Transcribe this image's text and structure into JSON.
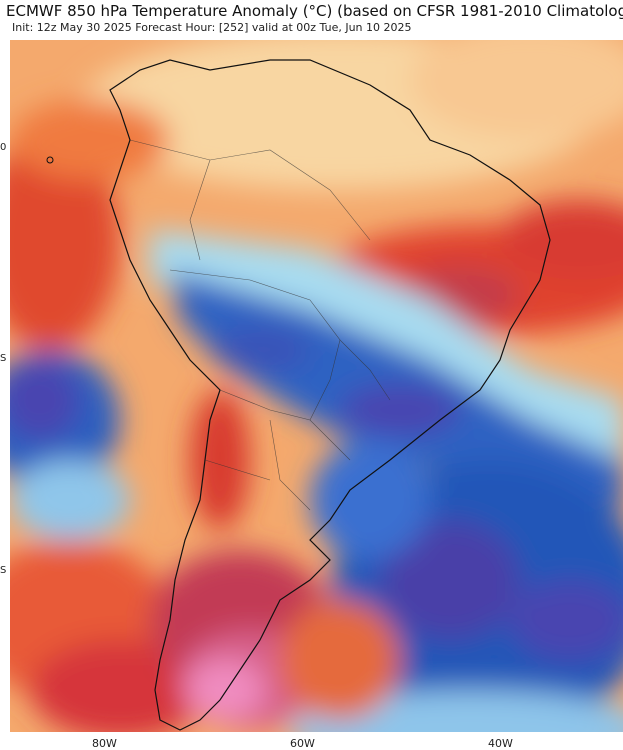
{
  "title": "ECMWF 850 hPa Temperature Anomaly (°C) (based on CFSR 1981-2010 Climatolog",
  "subtitle": "Init: 12z May 30 2025   Forecast Hour: [252]   valid at 00z Tue, Jun 10 2025",
  "lat_labels": [
    "0",
    "S",
    "S"
  ],
  "lon_labels": [
    "80W",
    "60W",
    "40W"
  ],
  "colors": {
    "warm_light": "#f7c98f",
    "warm": "#f08a4c",
    "hot": "#d8342e",
    "extreme": "#c0406a",
    "pink": "#f08cc0",
    "cool_light": "#bfe6f5",
    "cool": "#4f8fd6",
    "cold": "#2457b8",
    "very_cold": "#4a3fa8"
  }
}
